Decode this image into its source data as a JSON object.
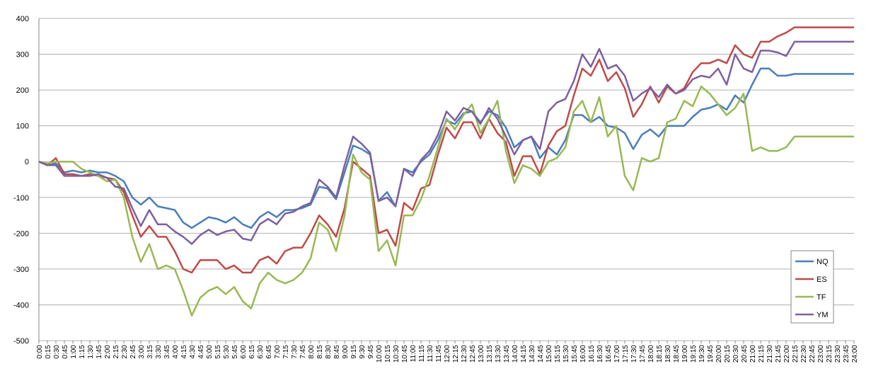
{
  "chart_data": {
    "type": "line",
    "categories": [
      "0:00",
      "0:15",
      "0:30",
      "0:45",
      "1:00",
      "1:15",
      "1:30",
      "1:45",
      "2:00",
      "2:15",
      "2:30",
      "2:45",
      "3:00",
      "3:15",
      "3:30",
      "3:45",
      "4:00",
      "4:15",
      "4:30",
      "4:45",
      "5:00",
      "5:15",
      "5:30",
      "5:45",
      "6:00",
      "6:15",
      "6:30",
      "6:45",
      "7:00",
      "7:15",
      "7:30",
      "7:45",
      "8:00",
      "8:15",
      "8:30",
      "8:45",
      "9:00",
      "9:15",
      "9:30",
      "9:45",
      "10:00",
      "10:15",
      "10:30",
      "10:45",
      "11:00",
      "11:15",
      "11:30",
      "11:45",
      "12:00",
      "12:15",
      "12:30",
      "12:45",
      "13:00",
      "13:15",
      "13:30",
      "13:45",
      "14:00",
      "14:15",
      "14:30",
      "14:45",
      "15:00",
      "15:15",
      "15:30",
      "15:45",
      "16:00",
      "16:15",
      "16:30",
      "16:45",
      "17:00",
      "17:15",
      "17:30",
      "17:45",
      "18:00",
      "18:15",
      "18:30",
      "18:45",
      "19:00",
      "19:15",
      "19:30",
      "19:45",
      "20:00",
      "20:15",
      "20:30",
      "20:45",
      "21:00",
      "21:15",
      "21:30",
      "21:45",
      "22:00",
      "22:15",
      "22:30",
      "22:45",
      "23:00",
      "23:15",
      "23:30",
      "23:45",
      "24:00"
    ],
    "series": [
      {
        "name": "NQ",
        "color": "#4a7ebb",
        "values": [
          0,
          -10,
          -5,
          -30,
          -25,
          -30,
          -25,
          -30,
          -30,
          -40,
          -55,
          -100,
          -120,
          -100,
          -125,
          -130,
          -135,
          -170,
          -185,
          -170,
          -155,
          -160,
          -170,
          -155,
          -175,
          -185,
          -155,
          -140,
          -155,
          -135,
          -135,
          -130,
          -120,
          -70,
          -75,
          -105,
          -30,
          45,
          35,
          20,
          -110,
          -85,
          -125,
          -20,
          -30,
          0,
          20,
          60,
          115,
          105,
          135,
          140,
          110,
          140,
          130,
          95,
          40,
          60,
          70,
          10,
          40,
          20,
          60,
          130,
          130,
          110,
          125,
          100,
          95,
          80,
          35,
          75,
          90,
          70,
          100,
          100,
          100,
          125,
          145,
          150,
          160,
          145,
          185,
          165,
          215,
          260,
          260,
          240,
          240,
          245,
          245,
          245,
          245,
          245,
          245,
          245,
          245
        ]
      },
      {
        "name": "ES",
        "color": "#be4b48",
        "values": [
          0,
          -10,
          10,
          -35,
          -35,
          -40,
          -35,
          -40,
          -45,
          -50,
          -85,
          -150,
          -210,
          -180,
          -210,
          -210,
          -250,
          -300,
          -310,
          -275,
          -275,
          -275,
          -300,
          -290,
          -310,
          -310,
          -275,
          -265,
          -285,
          -250,
          -240,
          -240,
          -200,
          -150,
          -175,
          -210,
          -130,
          0,
          -20,
          -40,
          -200,
          -190,
          -235,
          -115,
          -135,
          -75,
          -65,
          20,
          95,
          65,
          110,
          110,
          65,
          120,
          80,
          55,
          -40,
          15,
          15,
          -35,
          45,
          85,
          100,
          185,
          260,
          240,
          285,
          225,
          250,
          205,
          125,
          160,
          210,
          165,
          210,
          190,
          205,
          250,
          275,
          275,
          285,
          275,
          325,
          300,
          290,
          335,
          335,
          350,
          360,
          375,
          375,
          375,
          375,
          375,
          375,
          375,
          375
        ]
      },
      {
        "name": "TF",
        "color": "#98b954",
        "values": [
          0,
          -5,
          0,
          0,
          0,
          -20,
          -30,
          -40,
          -55,
          -50,
          -100,
          -210,
          -280,
          -230,
          -300,
          -290,
          -300,
          -360,
          -430,
          -380,
          -360,
          -350,
          -370,
          -350,
          -390,
          -410,
          -340,
          -310,
          -330,
          -340,
          -330,
          -310,
          -270,
          -170,
          -190,
          -250,
          -150,
          20,
          -30,
          -50,
          -250,
          -220,
          -290,
          -150,
          -150,
          -105,
          -40,
          40,
          120,
          90,
          130,
          160,
          80,
          120,
          170,
          30,
          -60,
          -10,
          -20,
          -40,
          0,
          10,
          40,
          140,
          170,
          110,
          180,
          70,
          100,
          -40,
          -80,
          10,
          0,
          10,
          110,
          120,
          170,
          155,
          210,
          190,
          160,
          130,
          150,
          190,
          30,
          40,
          30,
          30,
          40,
          70,
          70,
          70,
          70,
          70,
          70,
          70,
          70
        ]
      },
      {
        "name": "YM",
        "color": "#7d60a0",
        "values": [
          0,
          -10,
          -10,
          -40,
          -40,
          -40,
          -40,
          -35,
          -45,
          -70,
          -75,
          -130,
          -180,
          -135,
          -175,
          -175,
          -195,
          -210,
          -230,
          -205,
          -190,
          -205,
          -195,
          -190,
          -215,
          -220,
          -175,
          -160,
          -175,
          -145,
          -140,
          -125,
          -115,
          -50,
          -70,
          -100,
          -10,
          70,
          50,
          25,
          -110,
          -100,
          -125,
          -20,
          -40,
          5,
          30,
          75,
          140,
          115,
          150,
          140,
          105,
          150,
          120,
          70,
          20,
          60,
          70,
          35,
          140,
          165,
          175,
          225,
          300,
          265,
          315,
          260,
          270,
          240,
          170,
          190,
          205,
          180,
          215,
          190,
          200,
          230,
          240,
          235,
          260,
          215,
          300,
          260,
          250,
          310,
          310,
          305,
          295,
          335,
          335,
          335,
          335,
          335,
          335,
          335,
          335
        ]
      }
    ],
    "ylim": [
      -500,
      400
    ],
    "yticks": [
      -500,
      -400,
      -300,
      -200,
      -100,
      0,
      100,
      200,
      300,
      400
    ],
    "grid": true,
    "legend": "right"
  }
}
